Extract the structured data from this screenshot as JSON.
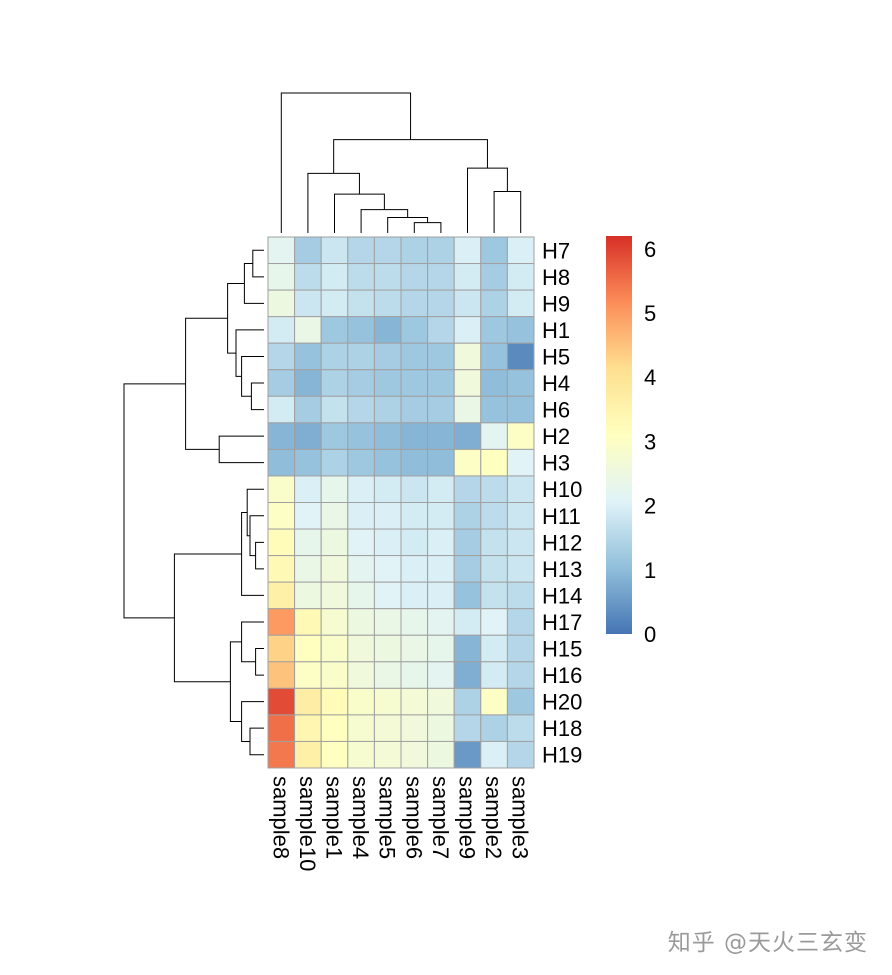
{
  "chart_data": {
    "type": "heatmap",
    "title": "",
    "columns": [
      "sample8",
      "sample10",
      "sample1",
      "sample4",
      "sample5",
      "sample6",
      "sample7",
      "sample9",
      "sample2",
      "sample3"
    ],
    "rows": [
      "H7",
      "H8",
      "H9",
      "H1",
      "H5",
      "H4",
      "H6",
      "H2",
      "H3",
      "H10",
      "H11",
      "H12",
      "H13",
      "H14",
      "H17",
      "H15",
      "H16",
      "H20",
      "H18",
      "H19"
    ],
    "values": [
      [
        2.2,
        1.3,
        1.8,
        1.5,
        1.5,
        1.4,
        1.4,
        2.0,
        1.2,
        2.0
      ],
      [
        2.3,
        1.6,
        1.9,
        1.6,
        1.6,
        1.5,
        1.5,
        1.9,
        1.3,
        1.9
      ],
      [
        2.5,
        1.8,
        1.9,
        1.7,
        1.6,
        1.5,
        1.5,
        1.8,
        1.4,
        1.9
      ],
      [
        1.9,
        2.4,
        1.2,
        1.1,
        0.9,
        1.2,
        1.5,
        2.0,
        1.2,
        1.1
      ],
      [
        1.5,
        1.1,
        1.4,
        1.4,
        1.3,
        1.2,
        1.2,
        2.6,
        1.1,
        0.3
      ],
      [
        1.3,
        0.9,
        1.4,
        1.3,
        1.2,
        1.2,
        1.2,
        2.6,
        1.0,
        1.1
      ],
      [
        1.9,
        1.3,
        1.7,
        1.5,
        1.4,
        1.3,
        1.3,
        2.4,
        1.1,
        1.1
      ],
      [
        0.9,
        0.8,
        1.2,
        1.1,
        1.0,
        0.9,
        0.9,
        0.8,
        2.2,
        3.0
      ],
      [
        1.0,
        1.1,
        1.4,
        1.2,
        1.1,
        1.0,
        1.0,
        3.0,
        3.1,
        2.1
      ],
      [
        2.9,
        2.0,
        2.3,
        2.0,
        1.9,
        1.8,
        1.9,
        1.5,
        1.6,
        1.8
      ],
      [
        3.0,
        2.1,
        2.4,
        2.0,
        2.0,
        1.9,
        1.9,
        1.4,
        1.6,
        1.8
      ],
      [
        3.2,
        2.3,
        2.5,
        2.1,
        2.0,
        1.9,
        2.0,
        1.3,
        1.7,
        1.8
      ],
      [
        3.3,
        2.4,
        2.6,
        2.2,
        2.1,
        2.0,
        2.0,
        1.3,
        1.7,
        1.8
      ],
      [
        3.6,
        2.5,
        2.6,
        2.3,
        2.1,
        2.0,
        2.0,
        1.1,
        1.7,
        1.6
      ],
      [
        5.0,
        3.3,
        2.8,
        2.5,
        2.4,
        2.3,
        2.2,
        1.9,
        2.1,
        1.5
      ],
      [
        4.3,
        3.1,
        2.9,
        2.6,
        2.5,
        2.4,
        2.3,
        0.9,
        1.9,
        1.5
      ],
      [
        4.5,
        3.0,
        2.9,
        2.6,
        2.4,
        2.3,
        2.2,
        0.8,
        1.9,
        1.5
      ],
      [
        5.9,
        3.7,
        3.2,
        2.9,
        2.8,
        2.7,
        2.6,
        1.4,
        3.0,
        1.2
      ],
      [
        5.5,
        3.4,
        3.1,
        2.8,
        2.7,
        2.6,
        2.5,
        1.5,
        1.4,
        1.6
      ],
      [
        5.4,
        3.6,
        3.1,
        2.8,
        2.7,
        2.6,
        2.5,
        0.5,
        2.0,
        1.5
      ]
    ],
    "color_scale": {
      "min": 0,
      "max": 6.2,
      "stops": [
        "#4575b4",
        "#91bfdb",
        "#e0f3f8",
        "#ffffbf",
        "#fee090",
        "#fc8d59",
        "#d73027"
      ],
      "ticks": [
        0,
        1,
        2,
        3,
        4,
        5,
        6
      ]
    },
    "cell_border_color": "#a0a0a0",
    "column_dendrogram": {
      "order": [
        "sample8",
        "sample10",
        "sample1",
        "sample4",
        "sample5",
        "sample6",
        "sample7",
        "sample9",
        "sample2",
        "sample3"
      ],
      "merges": [
        [
          -6,
          -7,
          0.4
        ],
        [
          -5,
          1,
          0.6
        ],
        [
          -4,
          2,
          0.9
        ],
        [
          -3,
          3,
          1.5
        ],
        [
          -2,
          4,
          2.3
        ],
        [
          -9,
          -10,
          1.6
        ],
        [
          -8,
          6,
          2.5
        ],
        [
          5,
          7,
          3.6
        ],
        [
          -1,
          8,
          5.4
        ]
      ]
    },
    "row_dendrogram": {
      "order": [
        "H7",
        "H8",
        "H9",
        "H1",
        "H5",
        "H4",
        "H6",
        "H2",
        "H3",
        "H10",
        "H11",
        "H12",
        "H13",
        "H14",
        "H17",
        "H15",
        "H16",
        "H20",
        "H18",
        "H19"
      ],
      "merges": [
        [
          -1,
          -2,
          0.4
        ],
        [
          -3,
          1,
          0.7
        ],
        [
          -6,
          -7,
          0.45
        ],
        [
          -5,
          3,
          0.8
        ],
        [
          -4,
          4,
          1.0
        ],
        [
          2,
          5,
          1.3
        ],
        [
          -8,
          -9,
          1.6
        ],
        [
          6,
          7,
          2.8
        ],
        [
          -12,
          -13,
          0.3
        ],
        [
          -11,
          9,
          0.5
        ],
        [
          -10,
          10,
          0.6
        ],
        [
          11,
          -14,
          0.8
        ],
        [
          -16,
          -17,
          0.3
        ],
        [
          -15,
          13,
          0.8
        ],
        [
          -19,
          -20,
          0.5
        ],
        [
          -18,
          15,
          0.8
        ],
        [
          14,
          16,
          1.2
        ],
        [
          12,
          17,
          3.2
        ],
        [
          8,
          18,
          5.0
        ]
      ]
    }
  },
  "watermark": "知乎 @天火三玄变"
}
